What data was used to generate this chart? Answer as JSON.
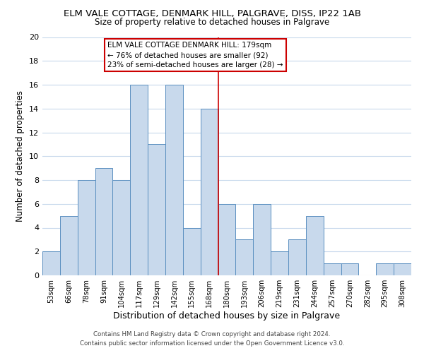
{
  "title": "ELM VALE COTTAGE, DENMARK HILL, PALGRAVE, DISS, IP22 1AB",
  "subtitle": "Size of property relative to detached houses in Palgrave",
  "xlabel": "Distribution of detached houses by size in Palgrave",
  "ylabel": "Number of detached properties",
  "bar_labels": [
    "53sqm",
    "66sqm",
    "78sqm",
    "91sqm",
    "104sqm",
    "117sqm",
    "129sqm",
    "142sqm",
    "155sqm",
    "168sqm",
    "180sqm",
    "193sqm",
    "206sqm",
    "219sqm",
    "231sqm",
    "244sqm",
    "257sqm",
    "270sqm",
    "282sqm",
    "295sqm",
    "308sqm"
  ],
  "bar_values": [
    2,
    5,
    8,
    9,
    8,
    16,
    11,
    16,
    4,
    14,
    6,
    3,
    6,
    2,
    3,
    5,
    1,
    1,
    0,
    1,
    1
  ],
  "bar_color": "#c8d9ec",
  "bar_edgecolor": "#5a8fc0",
  "vline_x_index": 10,
  "vline_color": "#cc0000",
  "ylim": [
    0,
    20
  ],
  "yticks": [
    0,
    2,
    4,
    6,
    8,
    10,
    12,
    14,
    16,
    18,
    20
  ],
  "annotation_title": "ELM VALE COTTAGE DENMARK HILL: 179sqm",
  "annotation_line1": "← 76% of detached houses are smaller (92)",
  "annotation_line2": "23% of semi-detached houses are larger (28) →",
  "annotation_box_color": "#ffffff",
  "annotation_box_edgecolor": "#cc0000",
  "footer1": "Contains HM Land Registry data © Crown copyright and database right 2024.",
  "footer2": "Contains public sector information licensed under the Open Government Licence v3.0.",
  "background_color": "#ffffff",
  "grid_color": "#c8d9ec"
}
